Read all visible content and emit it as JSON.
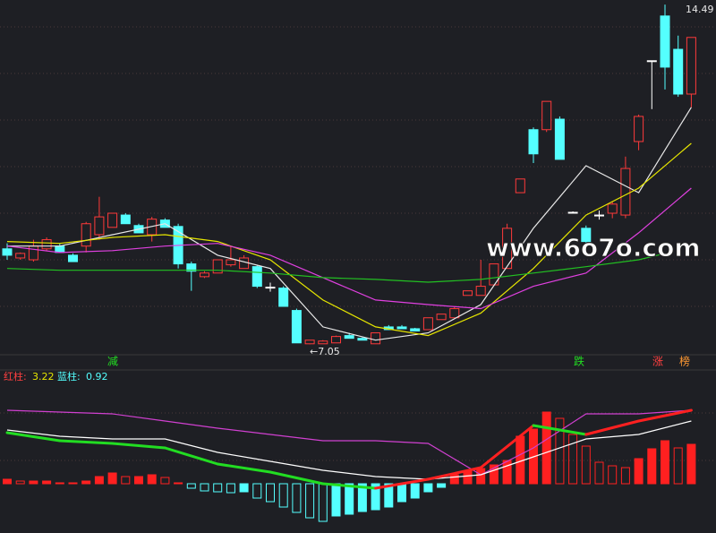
{
  "chart_data": [
    {
      "type": "candlestick",
      "open": [
        9.14,
        8.94,
        8.9,
        9.14,
        9.2,
        9.0,
        9.2,
        9.45,
        9.61,
        9.88,
        9.65,
        9.45,
        9.77,
        9.63,
        8.81,
        8.53,
        8.61,
        8.79,
        8.71,
        8.75,
        8.3,
        8.28,
        7.79,
        7.06,
        7.06,
        7.08,
        7.24,
        7.18,
        7.06,
        7.43,
        7.43,
        7.39,
        7.37,
        7.59,
        7.63,
        8.12,
        8.12,
        8.35,
        8.71,
        10.37,
        11.75,
        11.75,
        11.98,
        9.94,
        9.59,
        9.88,
        9.92,
        9.88,
        11.49,
        13.26,
        14.24,
        13.51,
        12.53
      ],
      "high": [
        9.26,
        9.06,
        9.34,
        9.39,
        9.26,
        9.04,
        9.73,
        10.28,
        9.92,
        9.92,
        9.69,
        9.84,
        9.81,
        9.69,
        8.86,
        8.65,
        8.9,
        9.2,
        9.0,
        8.79,
        8.4,
        8.32,
        7.83,
        7.14,
        7.14,
        7.24,
        7.3,
        7.2,
        7.3,
        7.47,
        7.47,
        7.41,
        7.63,
        7.71,
        7.88,
        8.22,
        8.9,
        8.81,
        9.69,
        10.67,
        11.8,
        12.37,
        12.04,
        9.96,
        9.65,
        9.98,
        10.18,
        11.16,
        12.08,
        13.26,
        14.49,
        13.81,
        13.77
      ],
      "low": [
        8.9,
        8.9,
        8.86,
        9.1,
        9.06,
        8.86,
        9.06,
        9.34,
        9.61,
        9.69,
        9.49,
        9.3,
        9.61,
        8.71,
        8.22,
        8.5,
        8.61,
        8.75,
        8.71,
        8.28,
        8.2,
        7.88,
        7.08,
        7.05,
        7.06,
        7.08,
        7.18,
        7.14,
        7.06,
        7.37,
        7.39,
        7.34,
        7.37,
        7.59,
        7.61,
        8.12,
        8.12,
        8.35,
        8.71,
        10.37,
        11.02,
        11.7,
        11.1,
        9.92,
        9.1,
        9.78,
        9.81,
        9.81,
        11.3,
        12.2,
        12.63,
        12.47,
        12.24
      ],
      "close": [
        9.0,
        9.04,
        9.2,
        9.34,
        9.06,
        8.86,
        9.69,
        9.84,
        9.92,
        9.69,
        9.49,
        9.79,
        9.61,
        8.81,
        8.65,
        8.61,
        8.9,
        8.9,
        8.94,
        8.32,
        8.3,
        7.88,
        7.08,
        7.14,
        7.12,
        7.22,
        7.18,
        7.14,
        7.3,
        7.37,
        7.39,
        7.34,
        7.63,
        7.71,
        7.83,
        8.22,
        8.32,
        8.81,
        9.59,
        10.67,
        11.22,
        12.37,
        11.1,
        9.94,
        9.3,
        9.88,
        10.12,
        10.9,
        12.04,
        13.26,
        13.12,
        12.53,
        13.77
      ],
      "up_color": "#ff3a3a",
      "down_color": "#54ffff",
      "flat_color": "#ffffff",
      "ylim": [
        6.84,
        14.59
      ],
      "series": [
        {
          "color": "#e8e8e8",
          "x": [
            0,
            4,
            8,
            12,
            16,
            20,
            24,
            28,
            32,
            36,
            40,
            44,
            48,
            52
          ],
          "values": [
            9.2,
            9.2,
            9.45,
            9.69,
            9.0,
            8.71,
            7.43,
            7.14,
            7.3,
            7.92,
            9.59,
            10.96,
            10.37,
            12.24
          ]
        },
        {
          "color": "#e6e600",
          "x": [
            0,
            4,
            8,
            12,
            16,
            20,
            24,
            28,
            32,
            36,
            40,
            44,
            48,
            52
          ],
          "values": [
            9.3,
            9.26,
            9.39,
            9.45,
            9.3,
            8.9,
            8.02,
            7.43,
            7.24,
            7.73,
            8.71,
            9.88,
            10.47,
            11.45
          ]
        },
        {
          "color": "#e040e0",
          "x": [
            0,
            4,
            8,
            12,
            16,
            20,
            24,
            28,
            32,
            36,
            40,
            44,
            48,
            52
          ],
          "values": [
            9.2,
            9.06,
            9.1,
            9.2,
            9.26,
            9.0,
            8.51,
            8.02,
            7.92,
            7.83,
            8.32,
            8.61,
            9.49,
            10.47
          ]
        },
        {
          "color": "#22c022",
          "x": [
            0,
            4,
            8,
            12,
            16,
            20,
            24,
            28,
            32,
            36,
            40,
            44,
            48,
            50
          ],
          "values": [
            8.71,
            8.67,
            8.67,
            8.67,
            8.67,
            8.61,
            8.51,
            8.47,
            8.41,
            8.47,
            8.61,
            8.75,
            8.9,
            9.04
          ]
        }
      ],
      "annotations": [
        "14.49",
        "←7.05"
      ],
      "signals": [
        "减",
        "跌",
        "涨",
        "榜"
      ],
      "watermark": "www.6o7o.com"
    },
    {
      "type": "bar",
      "legend": [
        {
          "text": "红柱:",
          "value": 3.22,
          "color": "#ff4040",
          "value_color": "#e6e600"
        },
        {
          "text": "蓝柱:",
          "value": 0.92,
          "color": "#54ffff",
          "value_color": "#54ffff"
        }
      ],
      "values": [
        0.5,
        0.3,
        0.3,
        0.3,
        0.1,
        0.1,
        0.3,
        0.8,
        1.2,
        0.8,
        0.8,
        1.0,
        0.7,
        0.1,
        -0.5,
        -0.8,
        -0.9,
        -1.0,
        -0.9,
        -1.6,
        -2.0,
        -2.6,
        -3.2,
        -3.8,
        -4.2,
        -3.6,
        -3.4,
        -3.1,
        -2.9,
        -2.6,
        -2.0,
        -1.6,
        -0.9,
        -0.4,
        1.0,
        1.4,
        1.7,
        2.1,
        2.6,
        5.3,
        6.1,
        8.0,
        7.3,
        5.5,
        4.2,
        2.4,
        2.0,
        1.8,
        2.8,
        3.9,
        4.8,
        4.0,
        4.4
      ],
      "up_color": "#ff2020",
      "down_color": "#54ffff",
      "ylim": [
        -5.5,
        11.5
      ],
      "series": [
        {
          "color": "#d040d0",
          "x": [
            0,
            4,
            8,
            12,
            16,
            20,
            24,
            28,
            32,
            36,
            40,
            44,
            48,
            52
          ],
          "values": [
            8.2,
            8.0,
            7.8,
            7.0,
            6.2,
            5.5,
            4.8,
            4.8,
            4.5,
            1.0,
            4.0,
            7.8,
            7.8,
            8.2
          ]
        },
        {
          "color": "#ffffff",
          "x": [
            0,
            4,
            8,
            12,
            16,
            20,
            24,
            28,
            32,
            36,
            40,
            44,
            48,
            52
          ],
          "values": [
            6.0,
            5.3,
            5.0,
            5.0,
            3.5,
            2.5,
            1.5,
            0.8,
            0.5,
            1.0,
            3.0,
            5.0,
            5.5,
            7.0
          ]
        },
        {
          "color": "#22dd22",
          "rise_color": "#ff2020",
          "x": [
            0,
            4,
            8,
            12,
            16,
            20,
            24,
            28,
            32,
            36,
            40,
            44,
            48,
            52
          ],
          "values": [
            5.7,
            4.8,
            4.5,
            4.0,
            2.2,
            1.3,
            0,
            -0.5,
            0.5,
            1.8,
            6.5,
            5.5,
            7.0,
            8.2
          ]
        }
      ]
    }
  ]
}
